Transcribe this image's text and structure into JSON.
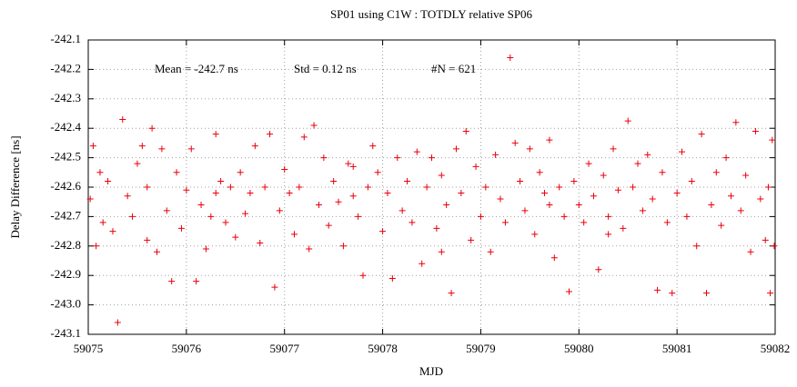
{
  "chart_data": {
    "type": "scatter",
    "title": "SP01 using C1W : TOTDLY relative SP06",
    "xlabel": "MJD",
    "ylabel": "Delay Difference [ns]",
    "annotations": [
      "Mean = -242.7 ns",
      "Std = 0.12 ns",
      "#N = 621"
    ],
    "color": "#e8000b",
    "grid": true,
    "xlim": [
      59075,
      59082
    ],
    "xticks": [
      59075,
      59076,
      59077,
      59078,
      59079,
      59080,
      59081,
      59082
    ],
    "ylim": [
      -243.1,
      -242.1
    ],
    "yticks": [
      -243.1,
      {
        "value": -243.0,
        "label": "-243.0"
      },
      -242.9,
      -242.8,
      -242.7,
      -242.6,
      -242.5,
      -242.4,
      -242.3,
      -242.2,
      -242.1
    ],
    "x": [
      59075.02,
      59075.05,
      59075.08,
      59075.12,
      59075.15,
      59075.2,
      59075.25,
      59075.3,
      59075.35,
      59075.4,
      59075.45,
      59075.5,
      59075.55,
      59075.6,
      59075.65,
      59075.7,
      59075.75,
      59075.8,
      59075.85,
      59075.9,
      59075.95,
      59076.0,
      59076.05,
      59076.1,
      59076.15,
      59076.2,
      59076.25,
      59076.3,
      59076.35,
      59076.4,
      59076.45,
      59076.5,
      59076.55,
      59076.6,
      59076.65,
      59076.7,
      59076.75,
      59076.8,
      59076.85,
      59076.9,
      59076.95,
      59077.0,
      59077.05,
      59077.1,
      59077.15,
      59077.2,
      59077.25,
      59077.3,
      59077.35,
      59077.4,
      59077.45,
      59077.5,
      59077.55,
      59077.6,
      59077.65,
      59077.7,
      59077.75,
      59077.8,
      59077.85,
      59077.9,
      59077.95,
      59078.0,
      59078.05,
      59078.1,
      59078.15,
      59078.2,
      59078.25,
      59078.3,
      59078.35,
      59078.4,
      59078.45,
      59078.5,
      59078.55,
      59078.6,
      59078.65,
      59078.7,
      59078.75,
      59078.8,
      59078.85,
      59078.9,
      59078.95,
      59079.0,
      59079.05,
      59079.1,
      59079.15,
      59079.2,
      59079.25,
      59079.3,
      59079.35,
      59079.4,
      59079.45,
      59079.5,
      59079.55,
      59079.6,
      59079.65,
      59079.7,
      59079.75,
      59079.8,
      59079.85,
      59079.9,
      59079.95,
      59080.0,
      59080.05,
      59080.1,
      59080.15,
      59080.2,
      59080.25,
      59080.3,
      59080.35,
      59080.4,
      59080.45,
      59080.5,
      59080.55,
      59080.6,
      59080.65,
      59080.7,
      59080.75,
      59080.8,
      59080.85,
      59080.9,
      59080.95,
      59081.0,
      59081.05,
      59081.1,
      59081.15,
      59081.2,
      59081.25,
      59081.3,
      59081.35,
      59081.4,
      59081.45,
      59081.5,
      59081.55,
      59081.6,
      59081.65,
      59081.7,
      59081.75,
      59081.8,
      59081.85,
      59081.9,
      59081.93,
      59081.95,
      59081.97,
      59081.99,
      59075.6,
      59076.3,
      59077.7,
      59078.6,
      59079.7,
      59080.3
    ],
    "values": [
      -242.64,
      -242.46,
      -242.8,
      -242.55,
      -242.72,
      -242.58,
      -242.75,
      -243.06,
      -242.37,
      -242.63,
      -242.7,
      -242.52,
      -242.46,
      -242.6,
      -242.4,
      -242.82,
      -242.47,
      -242.68,
      -242.92,
      -242.55,
      -242.74,
      -242.61,
      -242.47,
      -242.92,
      -242.66,
      -242.81,
      -242.7,
      -242.42,
      -242.58,
      -242.72,
      -242.6,
      -242.77,
      -242.55,
      -242.69,
      -242.62,
      -242.46,
      -242.79,
      -242.6,
      -242.42,
      -242.94,
      -242.68,
      -242.54,
      -242.62,
      -242.76,
      -242.6,
      -242.43,
      -242.81,
      -242.39,
      -242.66,
      -242.5,
      -242.73,
      -242.58,
      -242.65,
      -242.8,
      -242.52,
      -242.63,
      -242.7,
      -242.9,
      -242.6,
      -242.46,
      -242.55,
      -242.75,
      -242.62,
      -242.91,
      -242.5,
      -242.68,
      -242.58,
      -242.72,
      -242.48,
      -242.86,
      -242.6,
      -242.5,
      -242.74,
      -242.56,
      -242.66,
      -242.96,
      -242.47,
      -242.62,
      -242.41,
      -242.78,
      -242.53,
      -242.7,
      -242.6,
      -242.82,
      -242.49,
      -242.64,
      -242.72,
      -242.16,
      -242.45,
      -242.58,
      -242.68,
      -242.47,
      -242.76,
      -242.55,
      -242.62,
      -242.44,
      -242.84,
      -242.6,
      -242.7,
      -242.955,
      -242.58,
      -242.66,
      -242.72,
      -242.52,
      -242.63,
      -242.88,
      -242.56,
      -242.7,
      -242.47,
      -242.61,
      -242.74,
      -242.375,
      -242.6,
      -242.52,
      -242.68,
      -242.49,
      -242.64,
      -242.95,
      -242.55,
      -242.72,
      -242.96,
      -242.62,
      -242.48,
      -242.7,
      -242.58,
      -242.8,
      -242.42,
      -242.96,
      -242.66,
      -242.55,
      -242.73,
      -242.5,
      -242.63,
      -242.38,
      -242.68,
      -242.56,
      -242.82,
      -242.41,
      -242.64,
      -242.78,
      -242.6,
      -242.96,
      -242.44,
      -242.8,
      -242.78,
      -242.62,
      -242.53,
      -242.82,
      -242.66,
      -242.76
    ]
  }
}
